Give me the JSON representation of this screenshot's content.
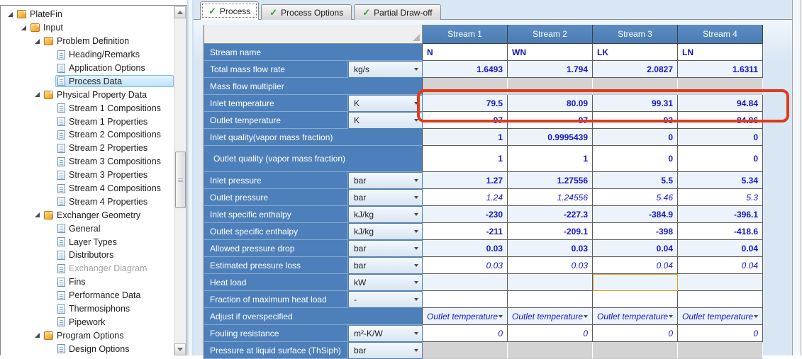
{
  "colors": {
    "header_blue": "#4d80ba",
    "value_blue": "#1414c8",
    "annotation_red": "#e13a1c",
    "check_green": "#2f9e2f",
    "focus_gold": "#d89e2b",
    "disabled_gray": "#d3d3d3"
  },
  "icons": {
    "checkmark": "✓",
    "tree_expand": "lower-right-triangle",
    "dropdown": "down-triangle",
    "folder": "orange-folder",
    "document": "blue-document"
  },
  "tree": {
    "items": [
      {
        "label": "PlateFin",
        "level": 0,
        "icon": "folder",
        "expanded": true
      },
      {
        "label": "Input",
        "level": 1,
        "icon": "folder",
        "expanded": true
      },
      {
        "label": "Problem Definition",
        "level": 2,
        "icon": "folder",
        "expanded": true
      },
      {
        "label": "Heading/Remarks",
        "level": 3,
        "icon": "doc"
      },
      {
        "label": "Application Options",
        "level": 3,
        "icon": "doc"
      },
      {
        "label": "Process Data",
        "level": 3,
        "icon": "doc",
        "selected": true
      },
      {
        "label": "Physical Property Data",
        "level": 2,
        "icon": "folder",
        "expanded": true
      },
      {
        "label": "Stream 1 Compositions",
        "level": 3,
        "icon": "doc"
      },
      {
        "label": "Stream 1 Properties",
        "level": 3,
        "icon": "doc"
      },
      {
        "label": "Stream 2 Compositions",
        "level": 3,
        "icon": "doc"
      },
      {
        "label": "Stream 2 Properties",
        "level": 3,
        "icon": "doc"
      },
      {
        "label": "Stream 3 Compositions",
        "level": 3,
        "icon": "doc"
      },
      {
        "label": "Stream 3 Properties",
        "level": 3,
        "icon": "doc"
      },
      {
        "label": "Stream 4 Compositions",
        "level": 3,
        "icon": "doc"
      },
      {
        "label": "Stream 4 Properties",
        "level": 3,
        "icon": "doc"
      },
      {
        "label": "Exchanger Geometry",
        "level": 2,
        "icon": "folder",
        "expanded": true
      },
      {
        "label": "General",
        "level": 3,
        "icon": "doc"
      },
      {
        "label": "Layer Types",
        "level": 3,
        "icon": "doc"
      },
      {
        "label": "Distributors",
        "level": 3,
        "icon": "doc"
      },
      {
        "label": "Exchanger Diagram",
        "level": 3,
        "icon": "doc",
        "disabled": true
      },
      {
        "label": "Fins",
        "level": 3,
        "icon": "doc"
      },
      {
        "label": "Performance Data",
        "level": 3,
        "icon": "doc"
      },
      {
        "label": "Thermosiphons",
        "level": 3,
        "icon": "doc"
      },
      {
        "label": "Pipework",
        "level": 3,
        "icon": "doc"
      },
      {
        "label": "Program Options",
        "level": 2,
        "icon": "folder",
        "expanded": true
      },
      {
        "label": "Design Options",
        "level": 3,
        "icon": "doc"
      }
    ]
  },
  "tabs": [
    {
      "label": "Process",
      "active": true
    },
    {
      "label": "Process Options",
      "active": false
    },
    {
      "label": "Partial Draw-off",
      "active": false
    }
  ],
  "table": {
    "column_headers": [
      "Stream 1",
      "Stream 2",
      "Stream 3",
      "Stream 4"
    ],
    "rows": [
      {
        "label": "Stream name",
        "unit": null,
        "style": "name",
        "values": [
          "N",
          "WN",
          "LK",
          "LN"
        ]
      },
      {
        "label": "Total mass flow rate",
        "unit": "kg/s",
        "style": "input",
        "values": [
          "1.6493",
          "1.794",
          "2.0827",
          "1.6311"
        ]
      },
      {
        "label": "Mass flow multiplier",
        "unit": null,
        "style": "input",
        "disabled": true,
        "values": [
          "",
          "",
          "",
          ""
        ]
      },
      {
        "label": "Inlet temperature",
        "unit": "K",
        "style": "input",
        "annotated": true,
        "values": [
          "79.5",
          "80.09",
          "99.31",
          "94.84"
        ]
      },
      {
        "label": "Outlet temperature",
        "unit": "K",
        "style": "input",
        "values": [
          "97",
          "97",
          "93",
          "84.86"
        ]
      },
      {
        "label": "Inlet quality(vapor mass fraction)",
        "unit": null,
        "style": "input",
        "values": [
          "1",
          "0.9995439",
          "0",
          "0"
        ]
      },
      {
        "label": "Outlet quality (vapor mass fraction)",
        "unit": null,
        "style": "input",
        "tall": true,
        "values": [
          "1",
          "1",
          "0",
          "0"
        ]
      },
      {
        "label": "Inlet pressure",
        "unit": "bar",
        "style": "input",
        "values": [
          "1.27",
          "1.27556",
          "5.5",
          "5.34"
        ]
      },
      {
        "label": "Outlet pressure",
        "unit": "bar",
        "style": "estimate",
        "values": [
          "1.24",
          "1.24556",
          "5.46",
          "5.3"
        ]
      },
      {
        "label": "Inlet specific enthalpy",
        "unit": "kJ/kg",
        "style": "input",
        "values": [
          "-230",
          "-227.3",
          "-384.9",
          "-396.1"
        ]
      },
      {
        "label": "Outlet specific enthalpy",
        "unit": "kJ/kg",
        "style": "input",
        "values": [
          "-211",
          "-209.1",
          "-398",
          "-418.6"
        ]
      },
      {
        "label": "Allowed pressure drop",
        "unit": "bar",
        "style": "input",
        "values": [
          "0.03",
          "0.03",
          "0.04",
          "0.04"
        ]
      },
      {
        "label": "Estimated pressure loss",
        "unit": "bar",
        "style": "estimate",
        "values": [
          "0.03",
          "0.03",
          "0.04",
          "0.04"
        ]
      },
      {
        "label": "Heat load",
        "unit": "kW",
        "style": "input",
        "focus_col": 2,
        "values": [
          "",
          "",
          "",
          ""
        ]
      },
      {
        "label": "Fraction of maximum heat load",
        "unit": "-",
        "style": "input",
        "values": [
          "",
          "",
          "",
          ""
        ]
      },
      {
        "label": "Adjust if overspecified",
        "unit": null,
        "style": "select",
        "values": [
          "Outlet temperature",
          "Outlet temperature",
          "Outlet temperature",
          "Outlet temperature"
        ]
      },
      {
        "label": "Fouling resistance",
        "unit": "m²-K/W",
        "style": "estimate",
        "values": [
          "0",
          "0",
          "0",
          "0"
        ]
      },
      {
        "label": "Pressure at liquid surface (ThSiph)",
        "unit": "bar",
        "style": "input",
        "disabled": true,
        "values": [
          "",
          "",
          "",
          ""
        ]
      }
    ]
  },
  "annotation": {
    "type": "red-highlight-box",
    "target_row": "Inlet temperature"
  }
}
